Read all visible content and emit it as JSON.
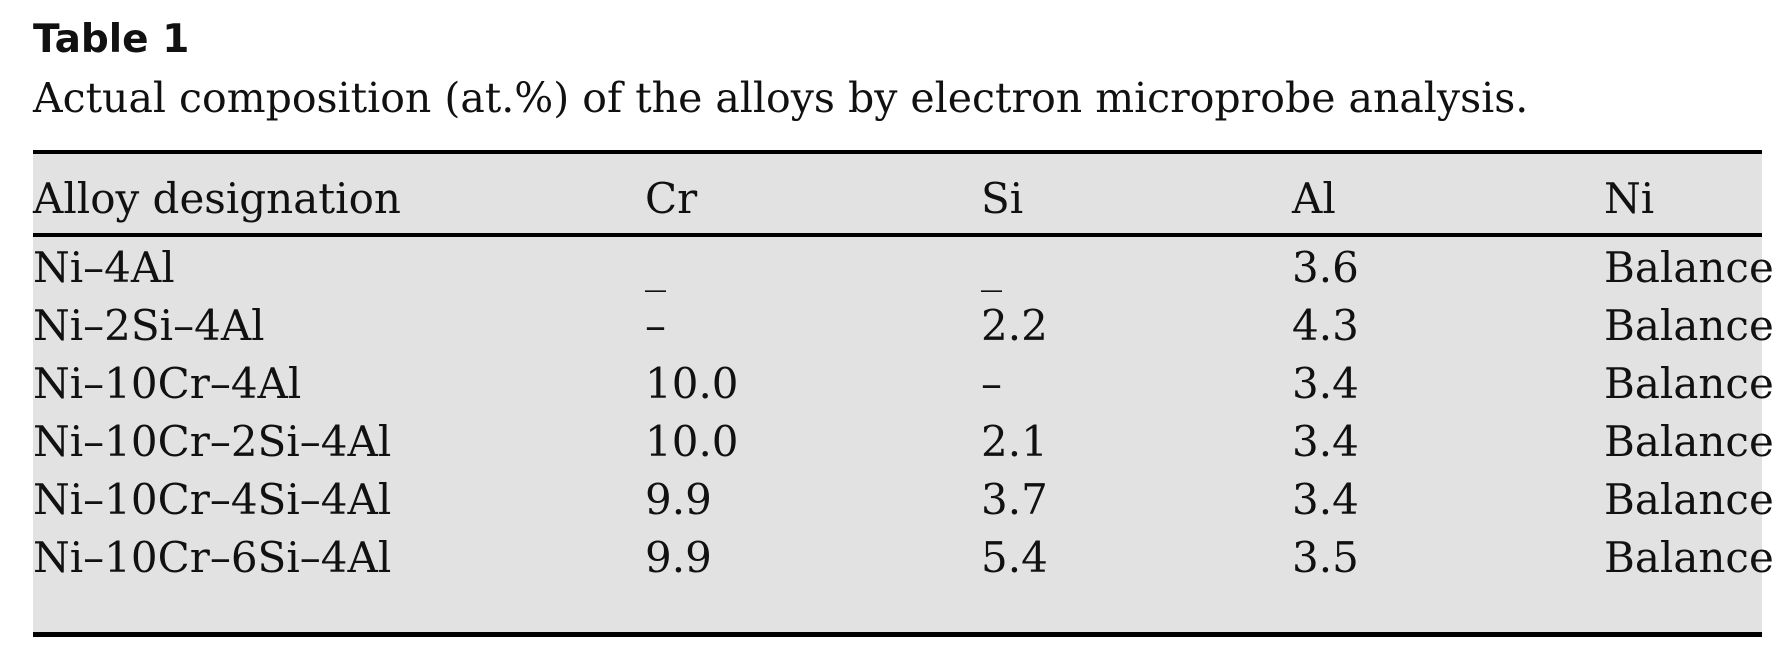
{
  "table": {
    "label": "Table 1",
    "caption": "Actual composition (at.%) of the alloys by electron microprobe analysis.",
    "columns": [
      "Alloy designation",
      "Cr",
      "Si",
      "Al",
      "Ni"
    ],
    "rows": [
      [
        "Ni–4Al",
        "_",
        "_",
        "3.6",
        "Balance"
      ],
      [
        "Ni–2Si–4Al",
        "–",
        "2.2",
        "4.3",
        "Balance"
      ],
      [
        "Ni–10Cr–4Al",
        "10.0",
        "–",
        "3.4",
        "Balance"
      ],
      [
        "Ni–10Cr–2Si–4Al",
        "10.0",
        "2.1",
        "3.4",
        "Balance"
      ],
      [
        "Ni–10Cr–4Si–4Al",
        "9.9",
        "3.7",
        "3.4",
        "Balance"
      ],
      [
        "Ni–10Cr–6Si–4Al",
        "9.9",
        "5.4",
        "3.5",
        "Balance"
      ]
    ]
  }
}
